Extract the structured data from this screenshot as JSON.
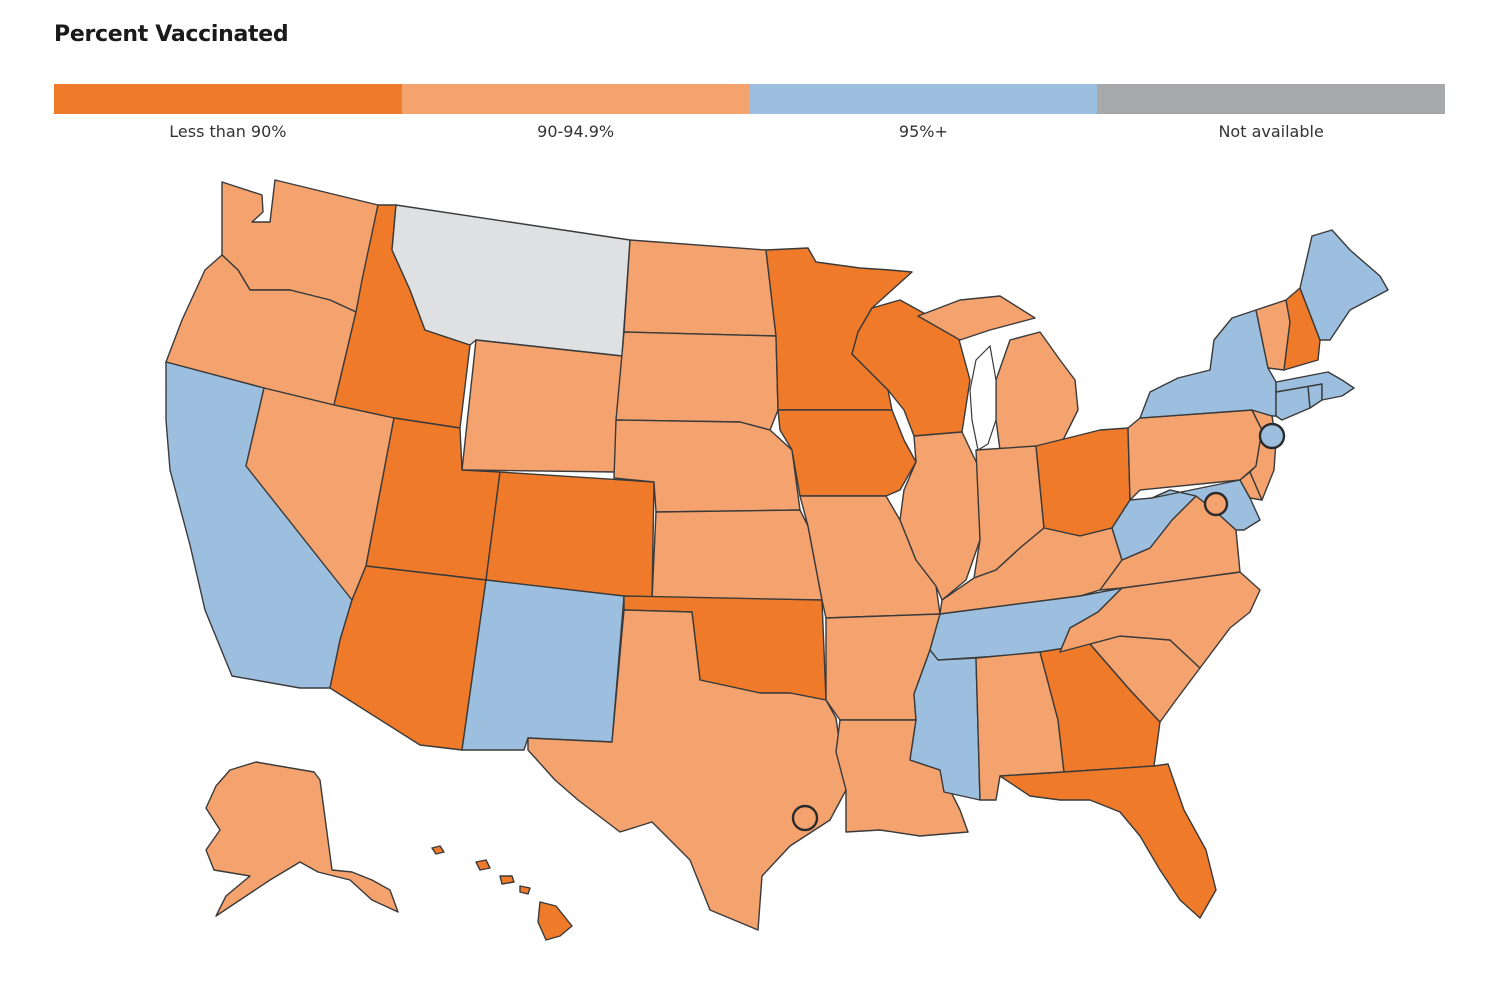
{
  "title": "Percent Vaccinated",
  "colors": {
    "lt90": "#ee7a2a",
    "90to95": "#f4a36f",
    "95plus": "#9dbfdf",
    "na": "#a6a8ab",
    "na_map": "#dfe0e1"
  },
  "legend": [
    {
      "label": "Less than 90%",
      "key": "lt90"
    },
    {
      "label": "90-94.9%",
      "key": "90to95"
    },
    {
      "label": "95%+",
      "key": "95plus"
    },
    {
      "label": "Not available",
      "key": "na"
    }
  ],
  "states": {
    "WA": "90to95",
    "OR": "90to95",
    "CA": "95plus",
    "ID": "lt90",
    "NV": "90to95",
    "MT": "na",
    "WY": "90to95",
    "UT": "lt90",
    "AZ": "lt90",
    "CO": "lt90",
    "NM": "95plus",
    "ND": "90to95",
    "SD": "90to95",
    "NE": "90to95",
    "KS": "90to95",
    "OK": "lt90",
    "TX": "90to95",
    "MN": "lt90",
    "IA": "lt90",
    "MO": "90to95",
    "AR": "90to95",
    "LA": "90to95",
    "WI": "lt90",
    "IL": "90to95",
    "MI": "90to95",
    "IN": "90to95",
    "OH": "lt90",
    "KY": "90to95",
    "TN": "95plus",
    "MS": "95plus",
    "AL": "90to95",
    "GA": "lt90",
    "FL": "lt90",
    "SC": "90to95",
    "NC": "90to95",
    "VA": "90to95",
    "WV": "95plus",
    "PA": "90to95",
    "NY": "95plus",
    "NJ": "90to95",
    "DE": "90to95",
    "MD": "95plus",
    "CT": "95plus",
    "RI": "95plus",
    "MA": "95plus",
    "VT": "90to95",
    "NH": "lt90",
    "ME": "95plus",
    "AK": "90to95",
    "HI": "lt90"
  },
  "cities": {
    "NYC": "95plus",
    "DC": "90to95",
    "Houston": "90to95"
  }
}
